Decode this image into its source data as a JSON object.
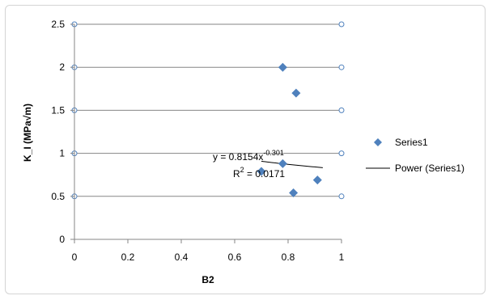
{
  "chart_data": {
    "type": "scatter",
    "title": "",
    "xlabel": "B2",
    "ylabel": "K_I (MPa√m)",
    "xlim": [
      0,
      1
    ],
    "ylim": [
      0,
      2.5
    ],
    "xticks": [
      0,
      0.2,
      0.4,
      0.6,
      0.8,
      1
    ],
    "yticks": [
      0,
      0.5,
      1,
      1.5,
      2,
      2.5
    ],
    "grid": true,
    "legend_position": "right",
    "series": [
      {
        "name": "Series1",
        "marker": "diamond",
        "color": "#4f81bd",
        "points": [
          {
            "x": 0.7,
            "y": 0.79
          },
          {
            "x": 0.78,
            "y": 0.88
          },
          {
            "x": 0.78,
            "y": 2.0
          },
          {
            "x": 0.82,
            "y": 0.54
          },
          {
            "x": 0.83,
            "y": 1.7
          },
          {
            "x": 0.91,
            "y": 0.69
          }
        ]
      }
    ],
    "trendline": {
      "name": "Power (Series1)",
      "type": "power",
      "a": 0.8154,
      "b": -0.301,
      "x_range": [
        0.7,
        0.93
      ],
      "color": "#000000"
    },
    "annotations": {
      "equation_prefix": "y = 0.8154x",
      "equation_exponent": "-0.301",
      "r2_prefix": "R",
      "r2_sup": "2",
      "r2_value": " = 0.0171"
    },
    "right_axis_marker_color": "#4f81bd"
  }
}
